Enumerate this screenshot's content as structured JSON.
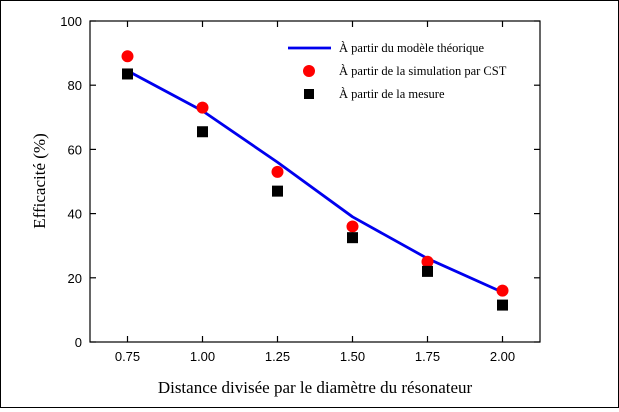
{
  "chart_data": {
    "type": "scatter",
    "xlabel": "Distance divisée par le diamètre du résonateur",
    "ylabel": "Efficacité (%)",
    "x_ticks": [
      "0.75",
      "1.00",
      "1.25",
      "1.50",
      "1.75",
      "2.00"
    ],
    "y_ticks": [
      "0",
      "20",
      "40",
      "60",
      "80",
      "100"
    ],
    "xlim": [
      0.625,
      2.125
    ],
    "ylim": [
      0,
      100
    ],
    "grid": false,
    "legend_position": "top-right",
    "x": [
      0.75,
      1.0,
      1.25,
      1.5,
      1.75,
      2.0
    ],
    "series": [
      {
        "name": "À partir du modèle théorique",
        "style": "line",
        "color": "#0000ee",
        "values": [
          84.5,
          72,
          56,
          39,
          26,
          15.5
        ]
      },
      {
        "name": "À partir de la simulation par CST",
        "style": "circle",
        "color": "#ff0000",
        "values": [
          89,
          73,
          53,
          36,
          25,
          16
        ]
      },
      {
        "name": "À partir de la mesure",
        "style": "square",
        "color": "#000000",
        "values": [
          83.5,
          65.5,
          47,
          32.5,
          22,
          11.5
        ]
      }
    ]
  }
}
